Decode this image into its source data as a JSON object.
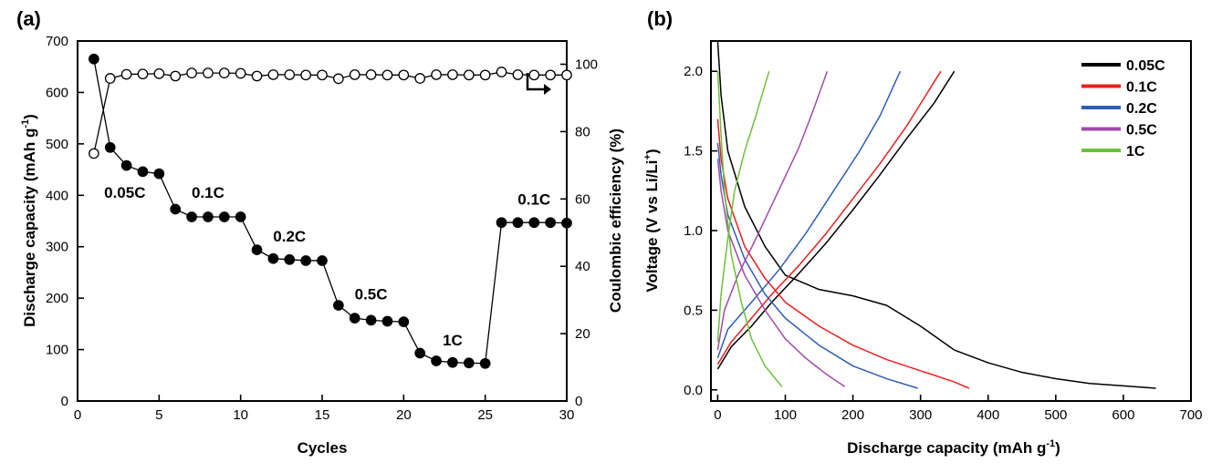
{
  "chart_data": [
    {
      "type": "scatter",
      "panel_label": "(a)",
      "xlabel": "Cycles",
      "ylabel": "Discharge capacity (mAh g",
      "ylabel_sup": "-1",
      "ylabel_end": ")",
      "y2label": "Coulombic efficiency (%)",
      "xlim": [
        0,
        30
      ],
      "ylim": [
        0,
        700
      ],
      "y2lim": [
        0,
        106.9
      ],
      "xticks": [
        "0",
        "5",
        "10",
        "15",
        "20",
        "25",
        "30"
      ],
      "yticks": [
        "0",
        "100",
        "200",
        "300",
        "400",
        "500",
        "600",
        "700"
      ],
      "y2ticks": [
        "0",
        "20",
        "40",
        "60",
        "80",
        "100"
      ],
      "grid": false,
      "series": [
        {
          "role": "discharge-capacity",
          "axis": "left",
          "marker": "filled-circle",
          "color": "#000000",
          "x": [
            1,
            2,
            3,
            4,
            5,
            6,
            7,
            8,
            9,
            10,
            11,
            12,
            13,
            14,
            15,
            16,
            17,
            18,
            19,
            20,
            21,
            22,
            23,
            24,
            25,
            26,
            27,
            28,
            29,
            30
          ],
          "y": [
            665,
            493,
            458,
            446,
            442,
            373,
            358,
            358,
            358,
            358,
            294,
            277,
            275,
            273,
            273,
            186,
            161,
            157,
            155,
            154,
            93,
            78,
            75,
            74,
            73,
            347,
            347,
            347,
            347,
            346
          ]
        },
        {
          "role": "coulombic-efficiency",
          "axis": "right",
          "marker": "open-circle",
          "color": "#000000",
          "x": [
            1,
            2,
            3,
            4,
            5,
            6,
            7,
            8,
            9,
            10,
            11,
            12,
            13,
            14,
            15,
            16,
            17,
            18,
            19,
            20,
            21,
            22,
            23,
            24,
            25,
            26,
            27,
            28,
            29,
            30
          ],
          "y": [
            73.5,
            95.8,
            97.0,
            97.1,
            97.2,
            96.5,
            97.4,
            97.4,
            97.4,
            97.3,
            96.5,
            96.9,
            96.9,
            96.8,
            96.8,
            95.7,
            96.9,
            96.9,
            96.8,
            96.8,
            95.8,
            96.9,
            96.9,
            96.8,
            96.8,
            97.7,
            96.9,
            96.8,
            96.8,
            96.8
          ]
        }
      ],
      "annotations": [
        {
          "text": "0.05C",
          "x": 2.9,
          "y": 395
        },
        {
          "text": "0.1C",
          "x": 8.0,
          "y": 395
        },
        {
          "text": "0.2C",
          "x": 13.0,
          "y": 310
        },
        {
          "text": "0.5C",
          "x": 18.0,
          "y": 198
        },
        {
          "text": "1C",
          "x": 23.0,
          "y": 108
        },
        {
          "text": "0.1C",
          "x": 28.0,
          "y": 382
        }
      ],
      "arrow_note": "right-axis indicator arrow near top-right"
    },
    {
      "type": "line",
      "panel_label": "(b)",
      "xlabel": "Discharge capacity (mAh g",
      "xlabel_sup": "-1",
      "xlabel_end": ")",
      "ylabel": "Voltage (V vs Li/Li",
      "ylabel_sup": "+",
      "ylabel_end": ")",
      "xlim": [
        -10,
        700
      ],
      "ylim": [
        -0.07,
        2.19
      ],
      "xticks": [
        "0",
        "100",
        "200",
        "300",
        "400",
        "500",
        "600",
        "700"
      ],
      "yticks": [
        "0.0",
        "0.5",
        "1.0",
        "1.5",
        "2.0"
      ],
      "grid": false,
      "legend_position": "top-right",
      "series": [
        {
          "name": "0.05C",
          "color": "#000000",
          "discharge": [
            [
              0,
              2.19
            ],
            [
              5,
              1.85
            ],
            [
              15,
              1.5
            ],
            [
              40,
              1.15
            ],
            [
              70,
              0.9
            ],
            [
              100,
              0.72
            ],
            [
              150,
              0.63
            ],
            [
              200,
              0.59
            ],
            [
              250,
              0.53
            ],
            [
              300,
              0.4
            ],
            [
              350,
              0.25
            ],
            [
              400,
              0.17
            ],
            [
              450,
              0.11
            ],
            [
              500,
              0.07
            ],
            [
              550,
              0.04
            ],
            [
              600,
              0.025
            ],
            [
              648,
              0.01
            ]
          ],
          "charge": [
            [
              0,
              0.13
            ],
            [
              20,
              0.27
            ],
            [
              50,
              0.4
            ],
            [
              80,
              0.55
            ],
            [
              120,
              0.73
            ],
            [
              160,
              0.92
            ],
            [
              200,
              1.13
            ],
            [
              240,
              1.35
            ],
            [
              280,
              1.58
            ],
            [
              320,
              1.8
            ],
            [
              350,
              2.0
            ]
          ]
        },
        {
          "name": "0.1C",
          "color": "#e8211f",
          "discharge": [
            [
              0,
              1.7
            ],
            [
              5,
              1.45
            ],
            [
              15,
              1.2
            ],
            [
              40,
              0.9
            ],
            [
              70,
              0.7
            ],
            [
              100,
              0.55
            ],
            [
              150,
              0.4
            ],
            [
              200,
              0.28
            ],
            [
              250,
              0.19
            ],
            [
              300,
              0.12
            ],
            [
              350,
              0.05
            ],
            [
              372,
              0.01
            ]
          ],
          "charge": [
            [
              0,
              0.16
            ],
            [
              20,
              0.3
            ],
            [
              50,
              0.45
            ],
            [
              80,
              0.6
            ],
            [
              120,
              0.78
            ],
            [
              160,
              0.98
            ],
            [
              200,
              1.2
            ],
            [
              240,
              1.42
            ],
            [
              280,
              1.66
            ],
            [
              330,
              2.0
            ]
          ]
        },
        {
          "name": "0.2C",
          "color": "#2e5db5",
          "discharge": [
            [
              0,
              1.55
            ],
            [
              5,
              1.35
            ],
            [
              15,
              1.1
            ],
            [
              40,
              0.82
            ],
            [
              70,
              0.6
            ],
            [
              100,
              0.45
            ],
            [
              150,
              0.28
            ],
            [
              200,
              0.15
            ],
            [
              250,
              0.07
            ],
            [
              296,
              0.01
            ]
          ],
          "charge": [
            [
              0,
              0.2
            ],
            [
              15,
              0.38
            ],
            [
              50,
              0.55
            ],
            [
              90,
              0.75
            ],
            [
              130,
              0.98
            ],
            [
              170,
              1.24
            ],
            [
              210,
              1.5
            ],
            [
              240,
              1.72
            ],
            [
              270,
              2.0
            ]
          ]
        },
        {
          "name": "0.5C",
          "color": "#a24aa8",
          "discharge": [
            [
              0,
              1.45
            ],
            [
              5,
              1.25
            ],
            [
              15,
              1.0
            ],
            [
              40,
              0.72
            ],
            [
              70,
              0.5
            ],
            [
              100,
              0.32
            ],
            [
              130,
              0.2
            ],
            [
              160,
              0.1
            ],
            [
              188,
              0.02
            ]
          ],
          "charge": [
            [
              0,
              0.25
            ],
            [
              10,
              0.5
            ],
            [
              30,
              0.72
            ],
            [
              60,
              0.98
            ],
            [
              90,
              1.25
            ],
            [
              120,
              1.52
            ],
            [
              140,
              1.74
            ],
            [
              162,
              2.0
            ]
          ]
        },
        {
          "name": "1C",
          "color": "#6cc13a",
          "discharge": [
            [
              0,
              2.0
            ],
            [
              5,
              1.6
            ],
            [
              10,
              1.25
            ],
            [
              20,
              0.85
            ],
            [
              35,
              0.55
            ],
            [
              50,
              0.32
            ],
            [
              70,
              0.15
            ],
            [
              95,
              0.02
            ]
          ],
          "charge": [
            [
              0,
              0.3
            ],
            [
              5,
              0.6
            ],
            [
              15,
              0.95
            ],
            [
              25,
              1.25
            ],
            [
              40,
              1.5
            ],
            [
              55,
              1.7
            ],
            [
              76,
              2.0
            ]
          ]
        }
      ]
    }
  ]
}
